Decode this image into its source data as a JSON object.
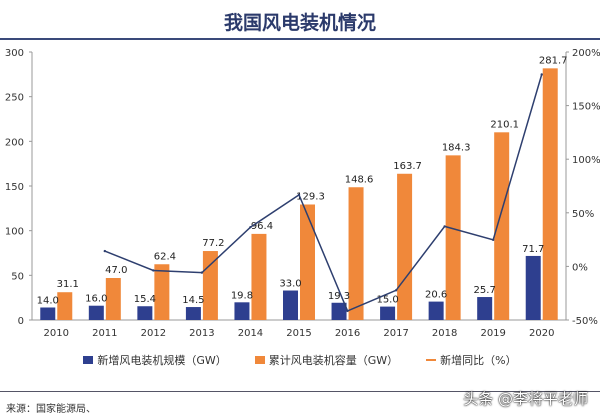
{
  "title": "我国风电装机情况",
  "source": "来源：国家能源局、",
  "watermark": "头条 @李将平老师",
  "chart_data": {
    "type": "bar",
    "title": "我国风电装机情况",
    "categories": [
      "2010",
      "2011",
      "2012",
      "2013",
      "2014",
      "2015",
      "2016",
      "2017",
      "2018",
      "2019",
      "2020"
    ],
    "series": [
      {
        "name": "新增风电装机规模（GW）",
        "type": "bar",
        "axis": "left",
        "color": "#2e3f8f",
        "values": [
          14.0,
          16.0,
          15.4,
          14.5,
          19.8,
          33.0,
          19.3,
          15.0,
          20.6,
          25.7,
          71.7
        ]
      },
      {
        "name": "累计风电装机容量（GW）",
        "type": "bar",
        "axis": "left",
        "color": "#f0883a",
        "values": [
          31.1,
          47.0,
          62.4,
          77.2,
          96.4,
          129.3,
          148.6,
          163.7,
          184.3,
          210.1,
          281.7
        ]
      },
      {
        "name": "新增同比（%）",
        "type": "line",
        "axis": "right",
        "color": "#2e3f6f",
        "values": [
          null,
          14.3,
          -3.8,
          -5.8,
          36.6,
          66.7,
          -41.5,
          -22.3,
          37.3,
          24.8,
          179.0
        ]
      }
    ],
    "left_axis": {
      "range": [
        0,
        300
      ],
      "ticks": [
        "0",
        "50",
        "100",
        "150",
        "200",
        "250",
        "300"
      ]
    },
    "right_axis": {
      "range": [
        -50,
        200
      ],
      "ticks": [
        "-50%",
        "0%",
        "50%",
        "100%",
        "150%",
        "200%"
      ]
    },
    "data_labels": {
      "new": [
        "14.0",
        "16.0",
        "15.4",
        "14.5",
        "19.8",
        "33.0",
        "19.3",
        "15.0",
        "20.6",
        "25.7",
        "71.7"
      ],
      "cumulative": [
        "31.1",
        "47.0",
        "62.4",
        "77.2",
        "96.4",
        "129.3",
        "148.6",
        "163.7",
        "184.3",
        "210.1",
        "281.7"
      ]
    },
    "grid": false,
    "legend_position": "bottom"
  }
}
